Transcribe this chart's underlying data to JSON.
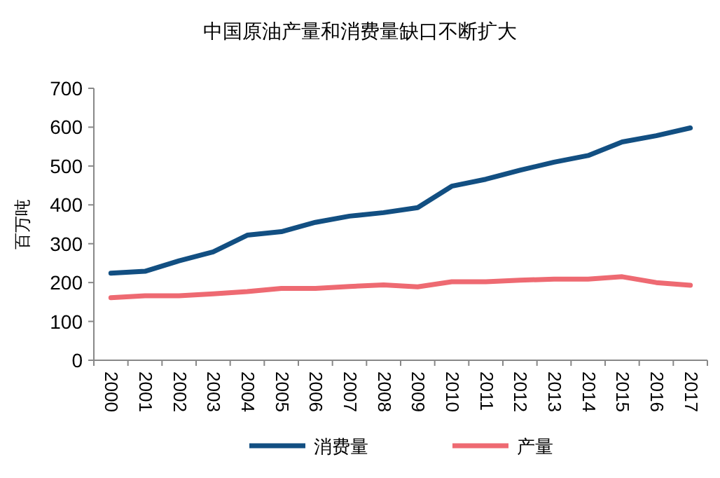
{
  "chart_data": {
    "type": "line",
    "title": "中国原油产量和消费量缺口不断扩大",
    "ylabel": "百万吨",
    "categories": [
      "2000",
      "2001",
      "2002",
      "2003",
      "2004",
      "2005",
      "2006",
      "2007",
      "2008",
      "2009",
      "2010",
      "2011",
      "2012",
      "2013",
      "2014",
      "2015",
      "2016",
      "2017"
    ],
    "series": [
      {
        "name": "消费量",
        "color": "#124f82",
        "values": [
          224,
          229,
          256,
          279,
          322,
          331,
          355,
          371,
          380,
          393,
          448,
          466,
          489,
          510,
          527,
          562,
          578,
          598
        ]
      },
      {
        "name": "产量",
        "color": "#ee6a72",
        "values": [
          161,
          166,
          166,
          171,
          177,
          185,
          185,
          190,
          194,
          189,
          202,
          202,
          206,
          209,
          209,
          215,
          200,
          193
        ]
      }
    ],
    "ylim": [
      0,
      700
    ],
    "yticks": [
      0,
      100,
      200,
      300,
      400,
      500,
      600,
      700
    ],
    "grid": false,
    "legend": "bottom",
    "marker": "none",
    "line_style": "solid"
  }
}
